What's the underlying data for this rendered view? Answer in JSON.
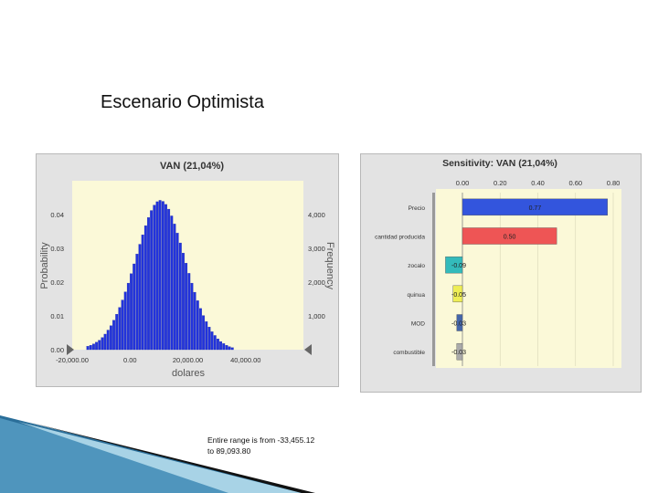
{
  "slide": {
    "bullet_glyph": "",
    "title": "Escenario Optimista",
    "footnote_line1": "Entire range is from -33,455.12",
    "footnote_line2": "to 89,093.80"
  },
  "chart_data": [
    {
      "type": "bar",
      "title": "VAN (21,04%)",
      "xlabel": "dolares",
      "ylabel": "Probability",
      "ylabel_right": "Frequency",
      "xlim": [
        -20000,
        60000
      ],
      "x_ticks": [
        "-20,000.00",
        "0.00",
        "20,000.00",
        "40,000.00"
      ],
      "x_tick_values": [
        -20000,
        0,
        20000,
        40000
      ],
      "y_ticks_left": [
        "0.00",
        "0.01",
        "0.02",
        "0.03",
        "0.04"
      ],
      "y_ticks_right": [
        "0",
        "1,000",
        "2,000",
        "3,000",
        "4,000"
      ],
      "ylim": [
        0,
        0.05
      ],
      "bar_color": "#2233dd",
      "bins": {
        "start": -15000,
        "width": 1000,
        "values": [
          0.001,
          0.0013,
          0.0017,
          0.0022,
          0.0028,
          0.0036,
          0.0046,
          0.0058,
          0.0071,
          0.0087,
          0.0105,
          0.0125,
          0.0147,
          0.0171,
          0.0197,
          0.0225,
          0.0254,
          0.0283,
          0.0312,
          0.034,
          0.0367,
          0.0391,
          0.0412,
          0.0428,
          0.0438,
          0.0442,
          0.0439,
          0.043,
          0.0416,
          0.0396,
          0.0372,
          0.0345,
          0.0316,
          0.0286,
          0.0256,
          0.0226,
          0.0197,
          0.017,
          0.0145,
          0.0122,
          0.0101,
          0.0083,
          0.0067,
          0.0053,
          0.0042,
          0.0032,
          0.0024,
          0.0018,
          0.0013,
          0.0009,
          0.0006
        ]
      }
    },
    {
      "type": "bar",
      "orientation": "horizontal",
      "title": "Sensitivity: VAN (21,04%)",
      "xlim": [
        0,
        0.8
      ],
      "x_ticks": [
        "0.00",
        "0.20",
        "0.40",
        "0.60",
        "0.80"
      ],
      "x_tick_values": [
        0,
        0.2,
        0.4,
        0.6,
        0.8
      ],
      "categories": [
        "Precio",
        "cantidad producida",
        "zocalo",
        "quinua",
        "MOD",
        "combustible"
      ],
      "values": [
        0.77,
        0.5,
        -0.09,
        -0.05,
        -0.03,
        -0.03
      ],
      "value_labels": [
        "0.77",
        "0.50",
        "-0.09",
        "-0.05",
        "-0.03",
        "-0.03"
      ],
      "colors": [
        "#3355dd",
        "#ee5555",
        "#33bbbb",
        "#eeee55",
        "#4466aa",
        "#aaaaaa"
      ]
    }
  ]
}
